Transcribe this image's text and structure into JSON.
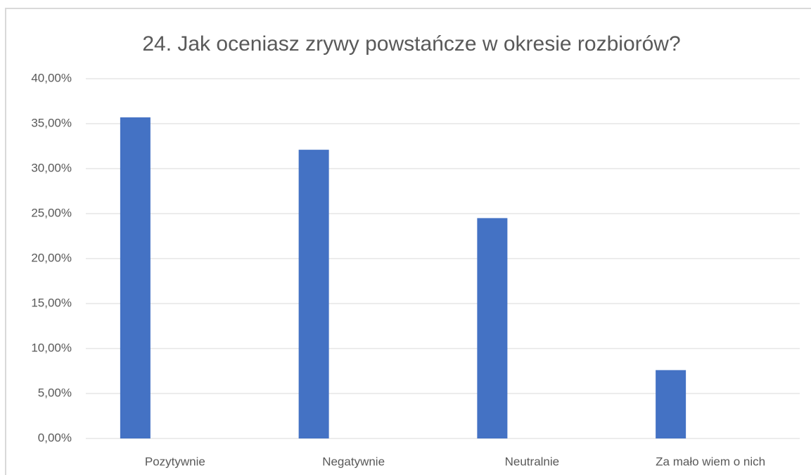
{
  "chart_data": {
    "type": "bar",
    "title": "24. Jak oceniasz zrywy powstańcze w okresie rozbiorów?",
    "categories": [
      "Pozytywnie",
      "Negatywnie",
      "Neutralnie",
      "Za mało wiem o nich"
    ],
    "values": [
      35.7,
      32.1,
      24.5,
      7.6
    ],
    "color": "#4472c4",
    "ylim": [
      0,
      40
    ],
    "yticks": [
      {
        "value": 0,
        "label": "0,00%"
      },
      {
        "value": 5,
        "label": "5,00%"
      },
      {
        "value": 10,
        "label": "10,00%"
      },
      {
        "value": 15,
        "label": "15,00%"
      },
      {
        "value": 20,
        "label": "20,00%"
      },
      {
        "value": 25,
        "label": "25,00%"
      },
      {
        "value": 30,
        "label": "30,00%"
      },
      {
        "value": 35,
        "label": "35,00%"
      },
      {
        "value": 40,
        "label": "40,00%"
      }
    ],
    "grid": true
  }
}
